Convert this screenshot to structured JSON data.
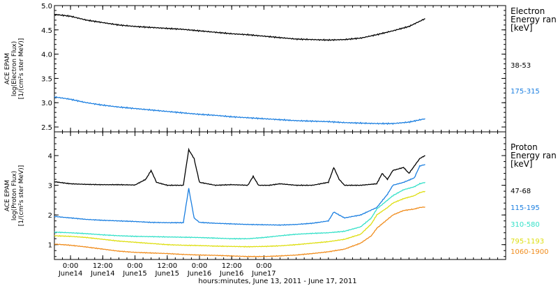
{
  "chart_data": [
    {
      "type": "line",
      "panel": "electron",
      "ylabel_lines": [
        "ACE EPAM",
        "log(Electron Flux)",
        "[1/(cm²s ster MeV)]"
      ],
      "ylim": [
        2.4,
        5.0
      ],
      "yticks": [
        "2.5",
        "3.0",
        "3.5",
        "4.0",
        "4.5",
        "5.0"
      ],
      "legend_title": [
        "Electron",
        "Energy ran",
        "[keV]"
      ],
      "legend_placement": "right",
      "series": [
        {
          "name": "38-53",
          "color": "#000000",
          "x": [
            0,
            6,
            12,
            18,
            24,
            30,
            36,
            42,
            48,
            54,
            60,
            66,
            72,
            78,
            84,
            90,
            96,
            102,
            108,
            114,
            120,
            126,
            132,
            138
          ],
          "y": [
            4.82,
            4.78,
            4.7,
            4.65,
            4.6,
            4.57,
            4.55,
            4.53,
            4.51,
            4.48,
            4.45,
            4.42,
            4.4,
            4.37,
            4.34,
            4.31,
            4.3,
            4.29,
            4.3,
            4.33,
            4.4,
            4.48,
            4.57,
            4.73
          ]
        },
        {
          "name": "175-315",
          "color": "#1a7ee0",
          "x": [
            0,
            6,
            12,
            18,
            24,
            30,
            36,
            42,
            48,
            54,
            60,
            66,
            72,
            78,
            84,
            90,
            96,
            102,
            108,
            114,
            120,
            126,
            132,
            138
          ],
          "y": [
            3.12,
            3.07,
            3.0,
            2.95,
            2.91,
            2.88,
            2.85,
            2.82,
            2.79,
            2.76,
            2.74,
            2.71,
            2.69,
            2.67,
            2.65,
            2.63,
            2.62,
            2.61,
            2.59,
            2.58,
            2.57,
            2.57,
            2.6,
            2.67
          ]
        }
      ]
    },
    {
      "type": "line",
      "panel": "proton",
      "ylabel_lines": [
        "ACE EPAM",
        "log(Proton Flux)",
        "[1/(cm²s ster MeV)]"
      ],
      "ylim": [
        0.5,
        4.8
      ],
      "yticks": [
        "1",
        "2",
        "3",
        "4"
      ],
      "legend_title": [
        "Proton",
        "Energy ran",
        "[keV]"
      ],
      "legend_placement": "right",
      "series": [
        {
          "name": "47-68",
          "color": "#000000",
          "x": [
            0,
            6,
            12,
            18,
            24,
            30,
            34,
            36,
            38,
            42,
            48,
            50,
            52,
            54,
            60,
            66,
            72,
            74,
            76,
            80,
            84,
            90,
            96,
            102,
            104,
            106,
            108,
            114,
            120,
            122,
            124,
            126,
            130,
            132,
            136,
            138
          ],
          "y": [
            3.12,
            3.05,
            3.03,
            3.02,
            3.02,
            3.01,
            3.2,
            3.5,
            3.1,
            3.0,
            3.0,
            4.2,
            3.9,
            3.1,
            3.0,
            3.02,
            3.0,
            3.3,
            3.0,
            3.0,
            3.05,
            3.0,
            3.0,
            3.1,
            3.6,
            3.2,
            3.0,
            3.0,
            3.05,
            3.4,
            3.2,
            3.5,
            3.6,
            3.4,
            3.9,
            4.0
          ]
        },
        {
          "name": "115-195",
          "color": "#1a7ee0",
          "x": [
            0,
            6,
            12,
            18,
            24,
            30,
            36,
            42,
            48,
            50,
            52,
            54,
            60,
            66,
            72,
            78,
            84,
            90,
            96,
            102,
            104,
            108,
            114,
            120,
            124,
            126,
            130,
            134,
            136,
            138
          ],
          "y": [
            1.95,
            1.9,
            1.85,
            1.82,
            1.8,
            1.78,
            1.75,
            1.74,
            1.74,
            2.9,
            1.9,
            1.75,
            1.72,
            1.7,
            1.68,
            1.67,
            1.66,
            1.68,
            1.72,
            1.8,
            2.1,
            1.9,
            2.0,
            2.25,
            2.7,
            3.0,
            3.1,
            3.25,
            3.65,
            3.7
          ]
        },
        {
          "name": "310-580",
          "color": "#33e0c8",
          "x": [
            0,
            6,
            12,
            18,
            24,
            30,
            36,
            42,
            48,
            54,
            60,
            66,
            72,
            78,
            84,
            90,
            96,
            102,
            108,
            114,
            118,
            120,
            124,
            126,
            130,
            134,
            136,
            138
          ],
          "y": [
            1.42,
            1.4,
            1.37,
            1.33,
            1.3,
            1.28,
            1.27,
            1.26,
            1.25,
            1.24,
            1.22,
            1.2,
            1.2,
            1.24,
            1.3,
            1.35,
            1.38,
            1.4,
            1.45,
            1.6,
            1.9,
            2.2,
            2.5,
            2.65,
            2.85,
            2.95,
            3.05,
            3.1
          ]
        },
        {
          "name": "795-1193",
          "color": "#dede10",
          "x": [
            0,
            6,
            12,
            18,
            24,
            30,
            36,
            42,
            48,
            54,
            60,
            66,
            72,
            78,
            84,
            90,
            96,
            102,
            108,
            114,
            118,
            120,
            124,
            126,
            130,
            134,
            136,
            138
          ],
          "y": [
            1.3,
            1.28,
            1.24,
            1.18,
            1.12,
            1.08,
            1.04,
            1.0,
            0.98,
            0.97,
            0.95,
            0.94,
            0.93,
            0.94,
            0.96,
            1.0,
            1.05,
            1.1,
            1.18,
            1.35,
            1.7,
            2.0,
            2.25,
            2.4,
            2.55,
            2.65,
            2.75,
            2.8
          ]
        },
        {
          "name": "1060-1900",
          "color": "#f08c1c",
          "x": [
            0,
            6,
            12,
            18,
            24,
            30,
            36,
            42,
            48,
            54,
            60,
            66,
            72,
            78,
            84,
            90,
            96,
            102,
            108,
            114,
            118,
            120,
            124,
            126,
            130,
            134,
            136,
            138
          ],
          "y": [
            1.02,
            0.98,
            0.92,
            0.85,
            0.78,
            0.74,
            0.72,
            0.7,
            0.67,
            0.65,
            0.64,
            0.62,
            0.6,
            0.6,
            0.62,
            0.65,
            0.7,
            0.76,
            0.85,
            1.05,
            1.3,
            1.55,
            1.85,
            2.0,
            2.15,
            2.2,
            2.25,
            2.27
          ]
        }
      ]
    }
  ],
  "xaxis": {
    "xlim": [
      0,
      168
    ],
    "ticks": [
      {
        "x": 6,
        "time": "0:00",
        "date": "June14"
      },
      {
        "x": 18,
        "time": "12:00",
        "date": "June14"
      },
      {
        "x": 30,
        "time": "0:00",
        "date": "June15"
      },
      {
        "x": 42,
        "time": "12:00",
        "date": "June15"
      },
      {
        "x": 54,
        "time": "0:00",
        "date": "June16"
      },
      {
        "x": 66,
        "time": "12:00",
        "date": "June16"
      },
      {
        "x": 78,
        "time": "0:00",
        "date": "June17"
      }
    ],
    "xlabel": "hours:minutes, June 13, 2011 - June 17, 2011"
  }
}
